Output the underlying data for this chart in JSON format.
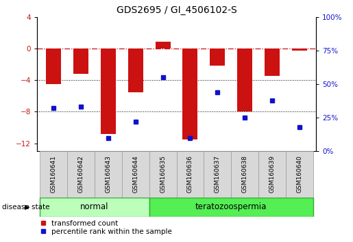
{
  "title": "GDS2695 / GI_4506102-S",
  "samples": [
    "GSM160641",
    "GSM160642",
    "GSM160643",
    "GSM160644",
    "GSM160635",
    "GSM160636",
    "GSM160637",
    "GSM160638",
    "GSM160639",
    "GSM160640"
  ],
  "groups": [
    "normal",
    "normal",
    "normal",
    "normal",
    "teratozoospermia",
    "teratozoospermia",
    "teratozoospermia",
    "teratozoospermia",
    "teratozoospermia",
    "teratozoospermia"
  ],
  "bar_values": [
    -4.5,
    -3.2,
    -10.8,
    -5.5,
    0.9,
    -11.5,
    -2.2,
    -8.0,
    -3.5,
    -0.3
  ],
  "percentile_values": [
    32,
    33,
    10,
    22,
    55,
    10,
    44,
    25,
    38,
    18
  ],
  "ylim_left": [
    -13,
    4
  ],
  "ylim_right": [
    0,
    100
  ],
  "bar_color": "#cc1111",
  "dot_color": "#1111cc",
  "bar_width": 0.55,
  "dotted_lines": [
    -4,
    -8
  ],
  "normal_color": "#bbffbb",
  "terato_color": "#55ee55",
  "group_border_color": "#33aa33",
  "disease_state_label": "disease state",
  "legend_items": [
    "transformed count",
    "percentile rank within the sample"
  ],
  "title_fontsize": 10,
  "tick_fontsize": 7.5,
  "label_fontsize": 6.5,
  "right_ytick_labels": [
    "0%",
    "25%",
    "50%",
    "75%",
    "100%"
  ],
  "right_ytick_vals": [
    0,
    25,
    50,
    75,
    100
  ]
}
